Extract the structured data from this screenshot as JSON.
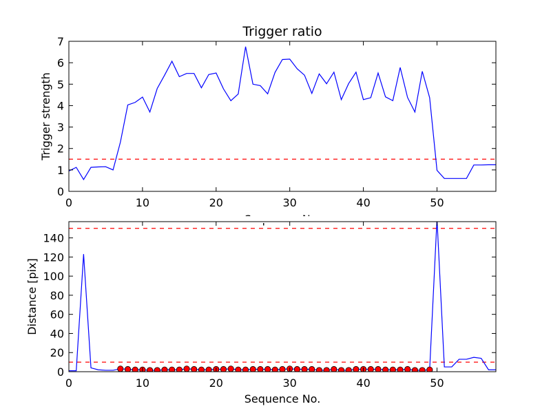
{
  "chart_data": [
    {
      "type": "line",
      "title": "Trigger ratio",
      "xlabel": "Sequence No.",
      "ylabel": "Trigger strength",
      "xlim": [
        0,
        58
      ],
      "ylim": [
        0,
        7
      ],
      "xticks": [
        0,
        10,
        20,
        30,
        40,
        50
      ],
      "yticks": [
        0,
        1,
        2,
        3,
        4,
        5,
        6,
        7
      ],
      "grid": false,
      "series": [
        {
          "color": "#0000ff",
          "style": "solid",
          "x": [
            0,
            1,
            2,
            3,
            4,
            5,
            6,
            7,
            8,
            9,
            10,
            11,
            12,
            13,
            14,
            15,
            16,
            17,
            18,
            19,
            20,
            21,
            22,
            23,
            24,
            25,
            26,
            27,
            28,
            29,
            30,
            31,
            32,
            33,
            34,
            35,
            36,
            37,
            38,
            39,
            40,
            41,
            42,
            43,
            44,
            45,
            46,
            47,
            48,
            49,
            50,
            51,
            52,
            53,
            54,
            55,
            56,
            57,
            58
          ],
          "values": [
            0.95,
            1.12,
            0.55,
            1.12,
            1.14,
            1.15,
            1.0,
            2.3,
            4.03,
            4.15,
            4.4,
            3.7,
            4.8,
            5.42,
            6.07,
            5.35,
            5.5,
            5.5,
            4.83,
            5.45,
            5.52,
            4.78,
            4.23,
            4.54,
            6.75,
            5.0,
            4.93,
            4.55,
            5.55,
            6.15,
            6.17,
            5.72,
            5.42,
            4.57,
            5.48,
            5.02,
            5.56,
            4.28,
            5.03,
            5.56,
            4.28,
            4.37,
            5.52,
            4.41,
            4.23,
            5.78,
            4.38,
            3.7,
            5.6,
            4.37,
            0.98,
            0.6,
            0.6,
            0.6,
            0.6,
            1.23,
            1.23,
            1.24,
            1.24
          ]
        }
      ],
      "reference_lines": [
        {
          "y": 1.5,
          "color": "#ff0000",
          "style": "dashed"
        }
      ]
    },
    {
      "type": "line",
      "title": "",
      "xlabel": "Sequence No.",
      "ylabel": "Distance [pix]",
      "xlim": [
        0,
        58
      ],
      "ylim": [
        0,
        157
      ],
      "xticks": [
        0,
        10,
        20,
        30,
        40,
        50
      ],
      "yticks": [
        0,
        20,
        40,
        60,
        80,
        100,
        120,
        140
      ],
      "grid": false,
      "series": [
        {
          "color": "#0000ff",
          "style": "solid",
          "x": [
            0,
            1,
            2,
            3,
            4,
            5,
            6,
            7,
            8,
            9,
            10,
            11,
            12,
            13,
            14,
            15,
            16,
            17,
            18,
            19,
            20,
            21,
            22,
            23,
            24,
            25,
            26,
            27,
            28,
            29,
            30,
            31,
            32,
            33,
            34,
            35,
            36,
            37,
            38,
            39,
            40,
            41,
            42,
            43,
            44,
            45,
            46,
            47,
            48,
            49,
            50,
            51,
            52,
            53,
            54,
            55,
            56,
            57,
            58
          ],
          "values": [
            1,
            1,
            123,
            4,
            2,
            1.5,
            1.5,
            3,
            2.5,
            2,
            2,
            1.5,
            1.5,
            2,
            2,
            2,
            3,
            2.5,
            2,
            2,
            2.5,
            2.5,
            3,
            2,
            2,
            2.5,
            2.5,
            2.5,
            2,
            2.5,
            3,
            2.5,
            2.5,
            2.5,
            1.5,
            1.5,
            2.5,
            1.5,
            1.5,
            2.5,
            2.5,
            2.5,
            2.5,
            2,
            2,
            2,
            2.5,
            1.5,
            1.5,
            2,
            160,
            5,
            5,
            13,
            13,
            15,
            14,
            2,
            2
          ]
        },
        {
          "color": "#ff0000",
          "style": "markers",
          "x": [
            7,
            8,
            9,
            10,
            11,
            12,
            13,
            14,
            15,
            16,
            17,
            18,
            19,
            20,
            21,
            22,
            23,
            24,
            25,
            26,
            27,
            28,
            29,
            30,
            31,
            32,
            33,
            34,
            35,
            36,
            37,
            38,
            39,
            40,
            41,
            42,
            43,
            44,
            45,
            46,
            47,
            48,
            49
          ],
          "values": [
            3,
            2.5,
            2,
            2,
            1.5,
            1.5,
            2,
            2,
            2,
            3,
            2.5,
            2,
            2,
            2.5,
            2.5,
            3,
            2,
            2,
            2.5,
            2.5,
            2.5,
            2,
            2.5,
            3,
            2.5,
            2.5,
            2.5,
            1.5,
            1.5,
            2.5,
            1.5,
            1.5,
            2.5,
            2.5,
            2.5,
            2.5,
            2,
            2,
            2,
            2.5,
            1.5,
            1.5,
            2
          ]
        }
      ],
      "reference_lines": [
        {
          "y": 150,
          "color": "#ff0000",
          "style": "dashed"
        },
        {
          "y": 10,
          "color": "#ff0000",
          "style": "dashed"
        }
      ]
    }
  ]
}
